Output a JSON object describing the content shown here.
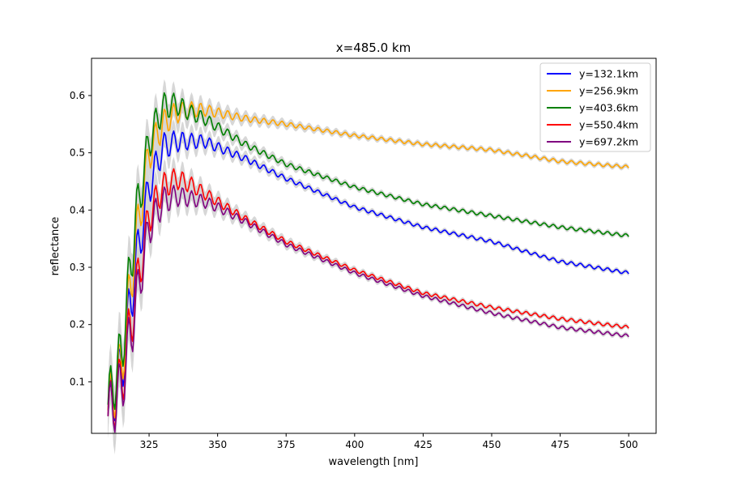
{
  "chart_data": {
    "type": "line",
    "title": "x=485.0 km",
    "xlabel": "wavelength [nm]",
    "ylabel": "reflectance",
    "xlim": [
      304,
      510
    ],
    "ylim": [
      0.01,
      0.665
    ],
    "xticks": [
      325,
      350,
      375,
      400,
      425,
      450,
      475,
      500
    ],
    "yticks": [
      0.1,
      0.2,
      0.3,
      0.4,
      0.5,
      0.6
    ],
    "grid": false,
    "legend_position": "top-right",
    "band_color": "#d3d3d3",
    "series": [
      {
        "name": "y=132.1km",
        "color": "#0000ff",
        "x": [
          310,
          315,
          320,
          325,
          330,
          335,
          340,
          345,
          350,
          360,
          375,
          400,
          425,
          450,
          475,
          500
        ],
        "y": [
          0.05,
          0.12,
          0.3,
          0.44,
          0.51,
          0.52,
          0.52,
          0.52,
          0.51,
          0.49,
          0.455,
          0.405,
          0.37,
          0.345,
          0.31,
          0.29
        ]
      },
      {
        "name": "y=256.9km",
        "color": "#ffa500",
        "x": [
          310,
          315,
          320,
          325,
          330,
          335,
          340,
          345,
          350,
          360,
          375,
          400,
          425,
          450,
          475,
          500
        ],
        "y": [
          0.05,
          0.13,
          0.34,
          0.5,
          0.55,
          0.57,
          0.575,
          0.575,
          0.57,
          0.56,
          0.55,
          0.53,
          0.515,
          0.505,
          0.485,
          0.475
        ]
      },
      {
        "name": "y=403.6km",
        "color": "#008000",
        "x": [
          310,
          315,
          320,
          325,
          330,
          335,
          340,
          345,
          350,
          360,
          375,
          400,
          425,
          450,
          475,
          500
        ],
        "y": [
          0.06,
          0.15,
          0.38,
          0.52,
          0.58,
          0.585,
          0.57,
          0.56,
          0.545,
          0.515,
          0.48,
          0.44,
          0.41,
          0.39,
          0.37,
          0.355
        ]
      },
      {
        "name": "y=550.4km",
        "color": "#ff0000",
        "x": [
          310,
          315,
          320,
          325,
          330,
          335,
          340,
          345,
          350,
          360,
          375,
          400,
          425,
          450,
          475,
          500
        ],
        "y": [
          0.04,
          0.1,
          0.25,
          0.39,
          0.44,
          0.455,
          0.445,
          0.43,
          0.415,
          0.385,
          0.345,
          0.295,
          0.255,
          0.23,
          0.21,
          0.195
        ]
      },
      {
        "name": "y=697.2km",
        "color": "#800080",
        "x": [
          310,
          315,
          320,
          325,
          330,
          335,
          340,
          345,
          350,
          360,
          375,
          400,
          425,
          450,
          475,
          500
        ],
        "y": [
          0.04,
          0.09,
          0.23,
          0.37,
          0.415,
          0.425,
          0.42,
          0.415,
          0.405,
          0.38,
          0.34,
          0.29,
          0.25,
          0.22,
          0.195,
          0.18
        ]
      }
    ]
  }
}
